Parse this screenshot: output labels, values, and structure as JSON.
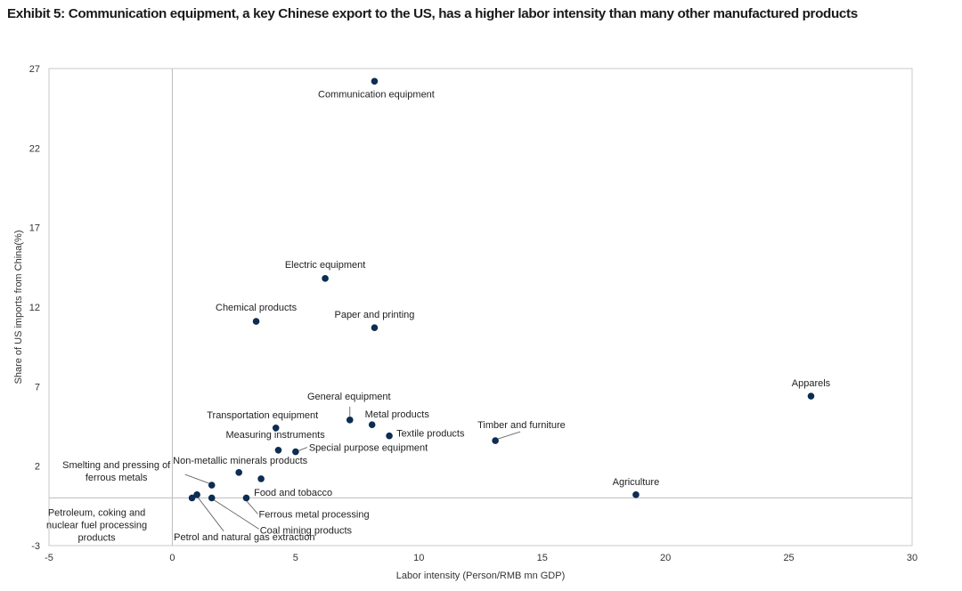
{
  "title": "Exhibit 5: Communication equipment, a key Chinese export to the US, has a higher labor intensity than many other manufactured products",
  "chart_data": {
    "type": "scatter",
    "xlabel": "Labor intensity (Person/RMB mn GDP)",
    "ylabel": "Share of US imports from China(%)",
    "xlim": [
      -5,
      30
    ],
    "ylim": [
      -3,
      27
    ],
    "xticks": [
      -5,
      0,
      5,
      10,
      15,
      20,
      25,
      30
    ],
    "yticks": [
      -3,
      2,
      7,
      12,
      17,
      22,
      27
    ],
    "grid": false,
    "legend": "none",
    "marker_color": "#0d2d52",
    "points": [
      {
        "label": "Communication equipment",
        "x": 8.2,
        "y": 26.2
      },
      {
        "label": "Electric equipment",
        "x": 6.2,
        "y": 13.8
      },
      {
        "label": "Chemical products",
        "x": 3.4,
        "y": 11.1
      },
      {
        "label": "Paper and printing",
        "x": 8.2,
        "y": 10.7
      },
      {
        "label": "Apparels",
        "x": 25.9,
        "y": 6.4
      },
      {
        "label": "General equipment",
        "x": 7.2,
        "y": 4.9
      },
      {
        "label": "Metal products",
        "x": 8.1,
        "y": 4.6
      },
      {
        "label": "Transportation equipment",
        "x": 4.2,
        "y": 4.4
      },
      {
        "label": "Textile products",
        "x": 8.8,
        "y": 3.9
      },
      {
        "label": "Timber and furniture",
        "x": 13.1,
        "y": 3.6
      },
      {
        "label": "Measuring instruments",
        "x": 4.3,
        "y": 3.0
      },
      {
        "label": "Special purpose equipment",
        "x": 5.0,
        "y": 2.9
      },
      {
        "label": "Non-metallic minerals products",
        "x": 2.7,
        "y": 1.6
      },
      {
        "label": "Food and tobacco",
        "x": 3.6,
        "y": 1.2
      },
      {
        "label": "Smelting and pressing of ferrous metals",
        "x": 1.6,
        "y": 0.8
      },
      {
        "label": "Agriculture",
        "x": 18.8,
        "y": 0.2
      },
      {
        "label": "Ferrous metal processing",
        "x": 3.0,
        "y": 0.0
      },
      {
        "label": "Coal mining products",
        "x": 1.6,
        "y": 0.0
      },
      {
        "label": "Petrol and natural gas extraction",
        "x": 1.0,
        "y": 0.2
      },
      {
        "label": "Petroleum, coking and nuclear fuel processing products",
        "x": 0.8,
        "y": 0.0
      }
    ]
  }
}
